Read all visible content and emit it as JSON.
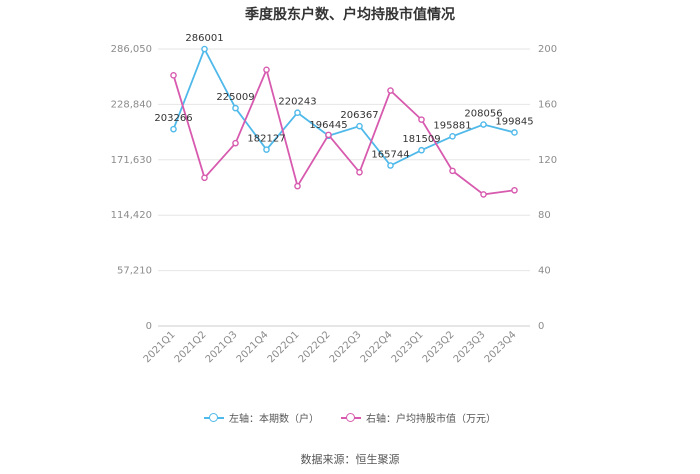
{
  "chart_data": {
    "type": "line",
    "title": "季度股东户数、户均持股市值情况",
    "categories": [
      "2021Q1",
      "2021Q2",
      "2021Q3",
      "2021Q4",
      "2022Q1",
      "2022Q2",
      "2022Q3",
      "2022Q4",
      "2023Q1",
      "2023Q2",
      "2023Q3",
      "2023Q4"
    ],
    "series": [
      {
        "name": "左轴：本期数（户）",
        "axis": "left",
        "color": "#4fb9ea",
        "values": [
          203266,
          286001,
          225009,
          182127,
          220243,
          196445,
          206367,
          165744,
          181509,
          195881,
          208056,
          199845
        ],
        "labels": [
          "203266",
          "286001",
          "225009",
          "182127",
          "220243",
          "196445",
          "206367",
          "165744",
          "181509",
          "195881",
          "208056",
          "199845"
        ]
      },
      {
        "name": "右轴：户均持股市值（万元）",
        "axis": "right",
        "color": "#d75aaf",
        "values": [
          181,
          107,
          132,
          185,
          101,
          138,
          111,
          170,
          149,
          112,
          95,
          98
        ]
      }
    ],
    "left_axis": {
      "min": 0,
      "max": 286050,
      "ticks": [
        "0",
        "57,210",
        "114,420",
        "171,630",
        "228,840",
        "286,050"
      ]
    },
    "right_axis": {
      "min": 0,
      "max": 200,
      "ticks": [
        "0",
        "40",
        "80",
        "120",
        "160",
        "200"
      ]
    },
    "grid": true,
    "legend_position": "bottom"
  },
  "source": "数据来源：恒生聚源"
}
